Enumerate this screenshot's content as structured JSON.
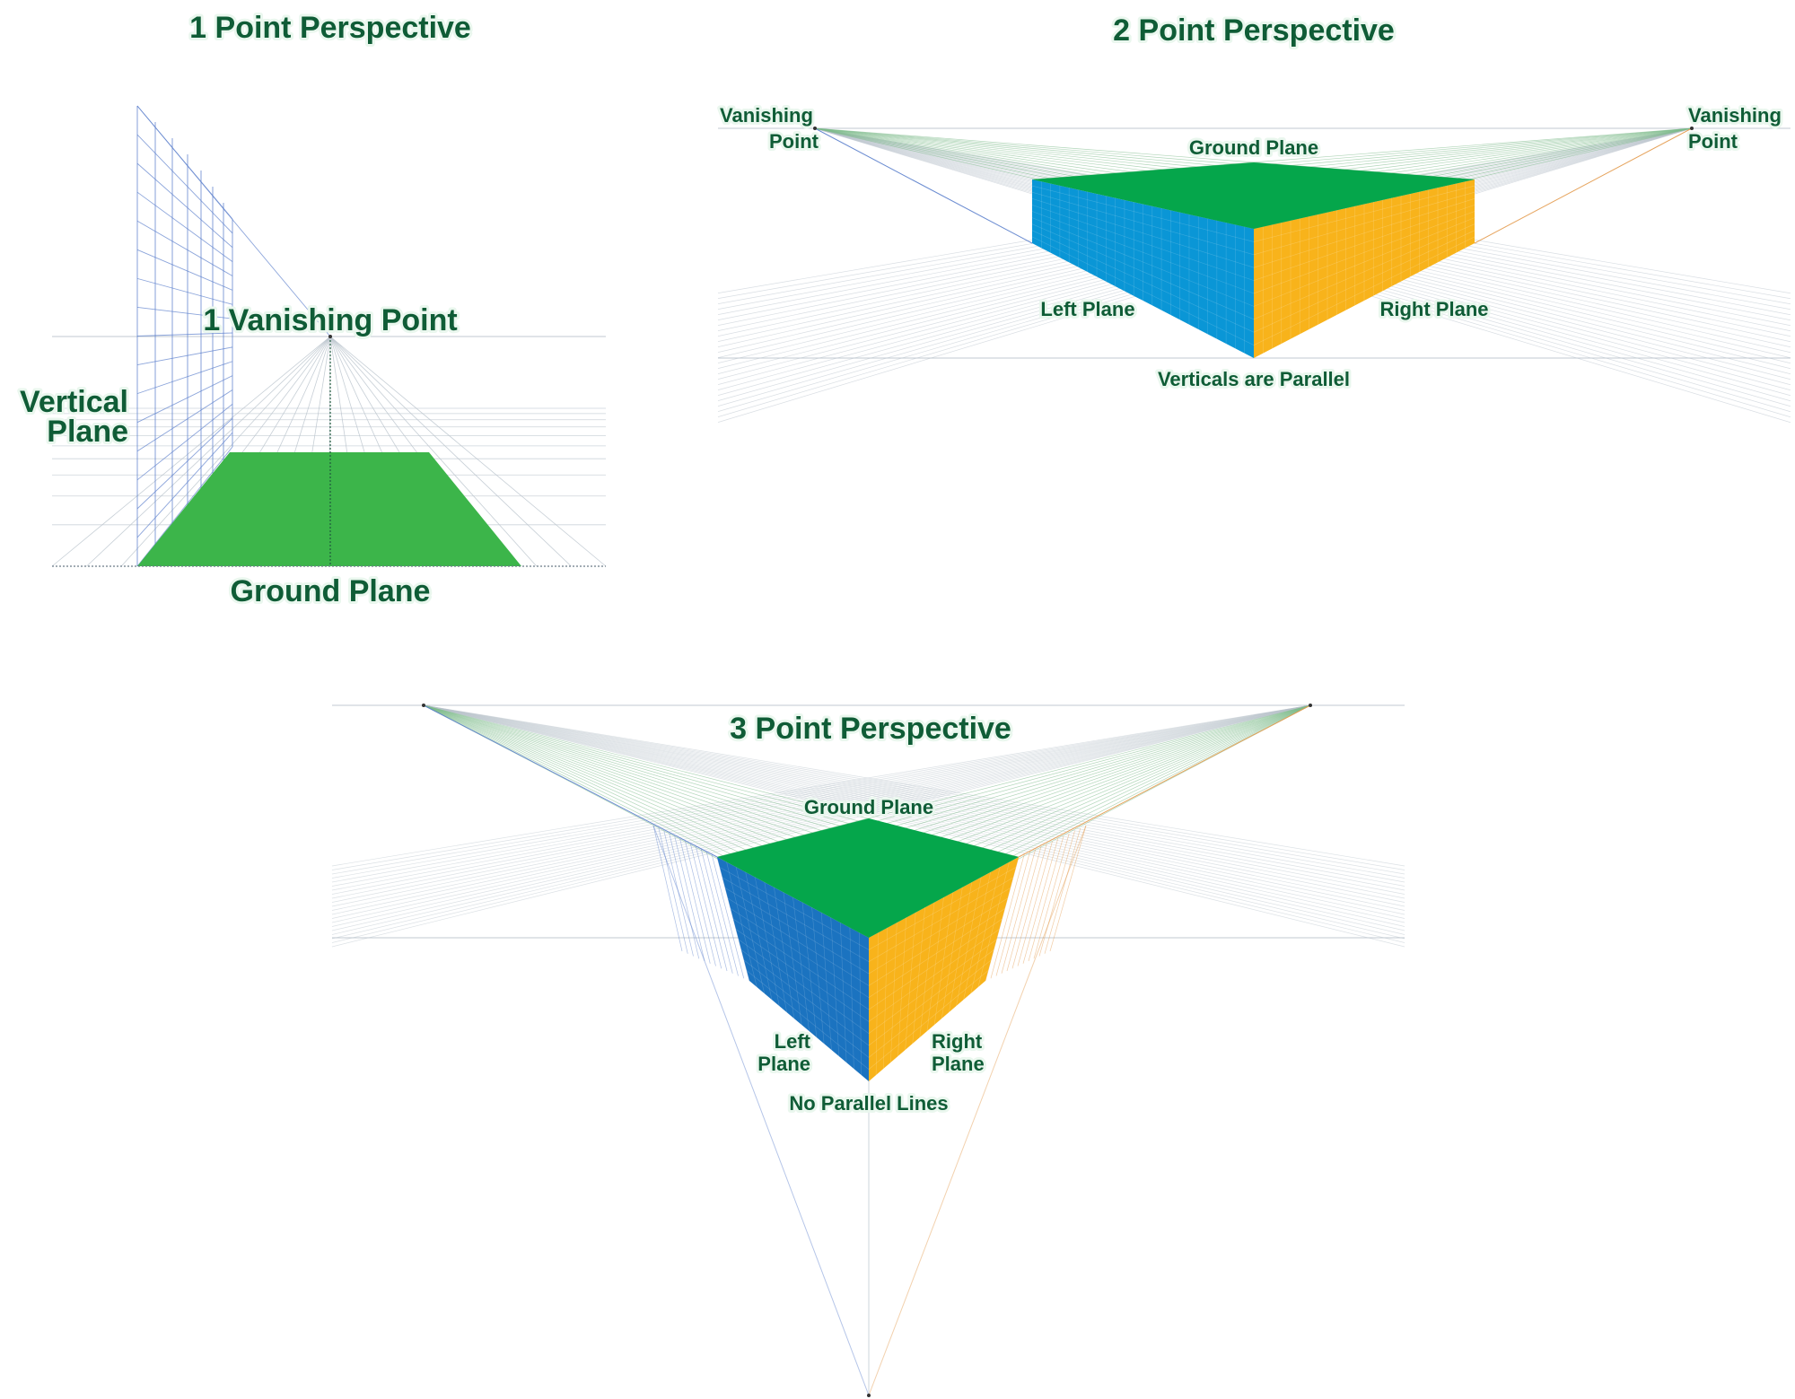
{
  "colors": {
    "ground_light": "#3cb54a",
    "ground": "#05a64b",
    "left_plane_2pt": "#0a96d6",
    "left_plane_3pt": "#1b73c0",
    "right_plane": "#f8b31b",
    "text": "#0f5c36",
    "text_halo": "#eaf7ee",
    "grid_blue": "#5b7fcc",
    "grid_green": "#7dbb8a",
    "grid_orange": "#e39a4c",
    "grid_gray": "#b9c3cc"
  },
  "one_point": {
    "title": "1 Point Perspective",
    "vanishing_point_label": "1 Vanishing Point",
    "vertical_plane_label": [
      "Vertical",
      "Plane"
    ],
    "ground_plane_label": "Ground Plane"
  },
  "two_point": {
    "title": "2 Point Perspective",
    "left_vp_label": [
      "Vanishing",
      "Point"
    ],
    "right_vp_label": [
      "Vanishing",
      "Point"
    ],
    "ground_plane_label": "Ground Plane",
    "left_plane_label": "Left Plane",
    "right_plane_label": "Right Plane",
    "caption": "Verticals are Parallel"
  },
  "three_point": {
    "title": "3 Point Perspective",
    "ground_plane_label": "Ground Plane",
    "left_plane_label": [
      "Left",
      "Plane"
    ],
    "right_plane_label": [
      "Right",
      "Plane"
    ],
    "caption": "No Parallel Lines"
  }
}
